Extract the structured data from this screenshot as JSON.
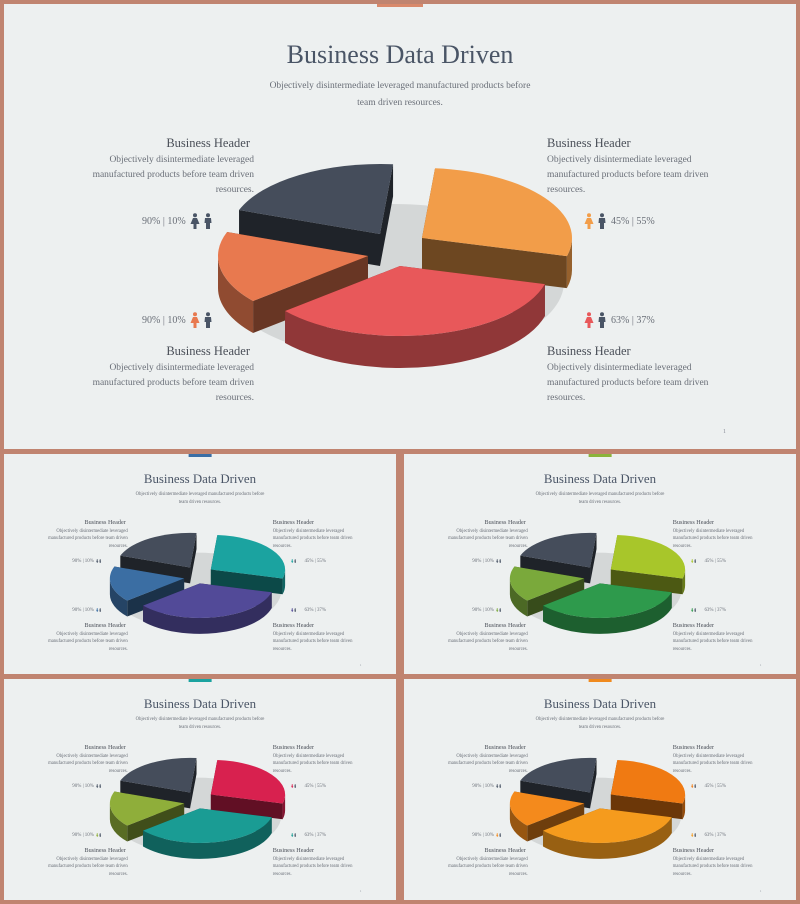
{
  "slides": [
    {
      "title": "Business Data Driven",
      "subtitle": "Objectively disintermediate leveraged manufactured products before team driven resources.",
      "blocks": {
        "tl": {
          "header": "Business Header",
          "body": "Objectively disintermediate leveraged manufactured products before team  driven resources."
        },
        "tr": {
          "header": "Business Header",
          "body": "Objectively disintermediate leveraged manufactured products before team  driven resources."
        },
        "bl": {
          "header": "Business Header",
          "body": "Objectively disintermediate leveraged manufactured products before team  driven resources."
        },
        "br": {
          "header": "Business Header",
          "body": "Objectively disintermediate leveraged manufactured products before team  driven resources."
        }
      },
      "stats": {
        "tl": "90% | 10%",
        "bl": "90% | 10%",
        "tr": "45% | 55%",
        "br": "63% | 37%"
      },
      "page_number": "1",
      "colors": {
        "topmark": "#d9896b",
        "back": "#454d5b",
        "left": "#e8794f",
        "right": "#f29d49",
        "front": "#e8585a",
        "icon_dark": "#4a5566"
      }
    },
    {
      "title": "Business Data Driven",
      "subtitle": "Objectively disintermediate leveraged manufactured products before team driven resources.",
      "blocks": {
        "tl": {
          "header": "Business Header",
          "body": "Objectively disintermediate leveraged manufactured products before team  driven resources."
        },
        "tr": {
          "header": "Business Header",
          "body": "Objectively disintermediate leveraged manufactured products before team  driven resources."
        },
        "bl": {
          "header": "Business Header",
          "body": "Objectively disintermediate leveraged manufactured products before team  driven resources."
        },
        "br": {
          "header": "Business Header",
          "body": "Objectively disintermediate leveraged manufactured products before team  driven resources."
        }
      },
      "stats": {
        "tl": "90% | 10%",
        "bl": "90% | 10%",
        "tr": "45% | 55%",
        "br": "63% | 37%"
      },
      "page_number": "1",
      "colors": {
        "topmark": "#3a6ea5",
        "back": "#454d5b",
        "left": "#3b6ea3",
        "right": "#1ba3a0",
        "front": "#524a98",
        "icon_dark": "#4a5566"
      }
    },
    {
      "title": "Business Data Driven",
      "subtitle": "Objectively disintermediate leveraged manufactured products before team driven resources.",
      "blocks": {
        "tl": {
          "header": "Business Header",
          "body": "Objectively disintermediate leveraged manufactured products before team  driven resources."
        },
        "tr": {
          "header": "Business Header",
          "body": "Objectively disintermediate leveraged manufactured products before team  driven resources."
        },
        "bl": {
          "header": "Business Header",
          "body": "Objectively disintermediate leveraged manufactured products before team  driven resources."
        },
        "br": {
          "header": "Business Header",
          "body": "Objectively disintermediate leveraged manufactured products before team  driven resources."
        }
      },
      "stats": {
        "tl": "90% | 10%",
        "bl": "90% | 10%",
        "tr": "45% | 55%",
        "br": "63% | 37%"
      },
      "page_number": "1",
      "colors": {
        "topmark": "#8bb33a",
        "back": "#454d5b",
        "left": "#7aa93b",
        "right": "#a8c62a",
        "front": "#2e9a4c",
        "icon_dark": "#4a5566"
      }
    },
    {
      "title": "Business Data Driven",
      "subtitle": "Objectively disintermediate leveraged manufactured products before team driven resources.",
      "blocks": {
        "tl": {
          "header": "Business Header",
          "body": "Objectively disintermediate leveraged manufactured products before team  driven resources."
        },
        "tr": {
          "header": "Business Header",
          "body": "Objectively disintermediate leveraged manufactured products before team  driven resources."
        },
        "bl": {
          "header": "Business Header",
          "body": "Objectively disintermediate leveraged manufactured products before team  driven resources."
        },
        "br": {
          "header": "Business Header",
          "body": "Objectively disintermediate leveraged manufactured products before team  driven resources."
        }
      },
      "stats": {
        "tl": "90% | 10%",
        "bl": "90% | 10%",
        "tr": "45% | 55%",
        "br": "63% | 37%"
      },
      "page_number": "1",
      "colors": {
        "topmark": "#1ba3a0",
        "back": "#454d5b",
        "left": "#8fae3a",
        "right": "#d8214f",
        "front": "#1a9c94",
        "icon_dark": "#4a5566"
      }
    },
    {
      "title": "Business Data Driven",
      "subtitle": "Objectively disintermediate leveraged manufactured products before team driven resources.",
      "blocks": {
        "tl": {
          "header": "Business Header",
          "body": "Objectively disintermediate leveraged manufactured products before team  driven resources."
        },
        "tr": {
          "header": "Business Header",
          "body": "Objectively disintermediate leveraged manufactured products before team  driven resources."
        },
        "bl": {
          "header": "Business Header",
          "body": "Objectively disintermediate leveraged manufactured products before team  driven resources."
        },
        "br": {
          "header": "Business Header",
          "body": "Objectively disintermediate leveraged manufactured products before team  driven resources."
        }
      },
      "stats": {
        "tl": "90% | 10%",
        "bl": "90% | 10%",
        "tr": "45% | 55%",
        "br": "63% | 37%"
      },
      "page_number": "1",
      "colors": {
        "topmark": "#f08a1e",
        "back": "#454d5b",
        "left": "#f48a1c",
        "right": "#f07a12",
        "front": "#f59b1d",
        "icon_dark": "#4a5566"
      }
    }
  ]
}
